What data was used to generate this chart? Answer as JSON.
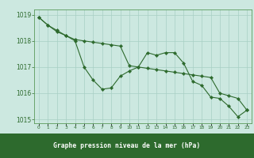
{
  "title": "Graphe pression niveau de la mer (hPa)",
  "xlabel_hours": [
    0,
    1,
    2,
    3,
    4,
    5,
    6,
    7,
    8,
    9,
    10,
    11,
    12,
    13,
    14,
    15,
    16,
    17,
    18,
    19,
    20,
    21,
    22,
    23
  ],
  "series1": [
    1018.9,
    1018.6,
    1018.4,
    1018.2,
    1018.0,
    1017.0,
    1016.5,
    1016.15,
    1016.2,
    1016.65,
    1016.85,
    1017.0,
    1017.55,
    1017.45,
    1017.55,
    1017.55,
    1017.15,
    1016.45,
    1016.3,
    1015.85,
    1015.8,
    1015.5,
    1015.1,
    1015.35
  ],
  "series2": [
    1018.9,
    1018.6,
    1018.35,
    1018.2,
    1018.05,
    1018.0,
    1017.95,
    1017.9,
    1017.85,
    1017.8,
    1017.05,
    1017.0,
    1016.95,
    1016.9,
    1016.85,
    1016.8,
    1016.75,
    1016.7,
    1016.65,
    1016.6,
    1016.0,
    1015.9,
    1015.8,
    1015.35
  ],
  "ylim": [
    1014.85,
    1019.2
  ],
  "yticks": [
    1015,
    1016,
    1017,
    1018,
    1019
  ],
  "line_color": "#2d6a2d",
  "marker_color": "#2d6a2d",
  "bg_color": "#cce8e0",
  "grid_color": "#a8cfc4",
  "title_bg": "#2d6a2d",
  "title_text_color": "#ffffff",
  "tick_label_color": "#2d6a2d",
  "spine_color": "#5a9a5a"
}
